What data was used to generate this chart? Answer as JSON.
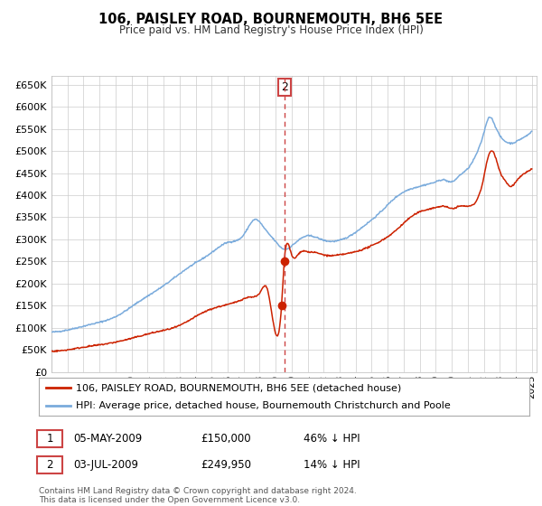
{
  "title": "106, PAISLEY ROAD, BOURNEMOUTH, BH6 5EE",
  "subtitle": "Price paid vs. HM Land Registry's House Price Index (HPI)",
  "legend_line1": "106, PAISLEY ROAD, BOURNEMOUTH, BH6 5EE (detached house)",
  "legend_line2": "HPI: Average price, detached house, Bournemouth Christchurch and Poole",
  "transaction1_label": "1",
  "transaction1_date": "05-MAY-2009",
  "transaction1_price": "£150,000",
  "transaction1_hpi": "46% ↓ HPI",
  "transaction1_x": 2009.37,
  "transaction1_y": 150000,
  "transaction2_label": "2",
  "transaction2_date": "03-JUL-2009",
  "transaction2_price": "£249,950",
  "transaction2_hpi": "14% ↓ HPI",
  "transaction2_x": 2009.54,
  "transaction2_y": 249950,
  "vline_x": 2009.54,
  "footnote": "Contains HM Land Registry data © Crown copyright and database right 2024.\nThis data is licensed under the Open Government Licence v3.0.",
  "hpi_color": "#7aabdc",
  "price_color": "#cc2200",
  "vline_color": "#cc4444",
  "background_color": "#ffffff",
  "grid_color": "#cccccc",
  "ylim": [
    0,
    670000
  ],
  "xlim_start": 1995.0,
  "xlim_end": 2025.3
}
